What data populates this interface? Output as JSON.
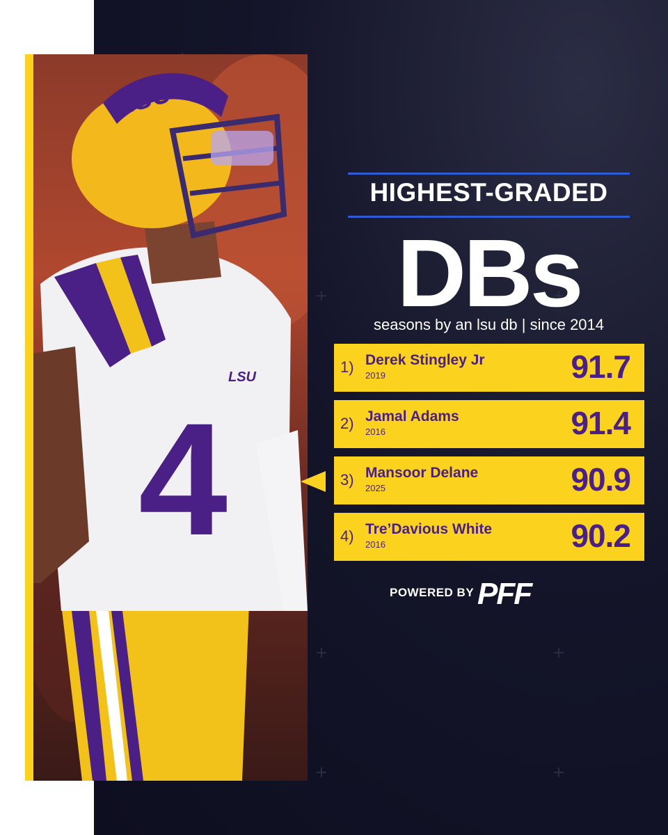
{
  "header": {
    "subtitle": "HIGHEST-GRADED",
    "title": "DBs",
    "caption": "seasons by an lsu db | since 2014"
  },
  "players": [
    {
      "rank": "1)",
      "name": "Derek Stingley Jr",
      "year": "2019",
      "grade": "91.7"
    },
    {
      "rank": "2)",
      "name": "Jamal Adams",
      "year": "2016",
      "grade": "91.4"
    },
    {
      "rank": "3)",
      "name": "Mansoor Delane",
      "year": "2025",
      "grade": "90.9"
    },
    {
      "rank": "4)",
      "name": "Tre’Davious White",
      "year": "2016",
      "grade": "90.2"
    }
  ],
  "highlighted_player_index": 2,
  "footer": {
    "powered_by": "POWERED BY",
    "brand": "PFF"
  },
  "photo": {
    "helmet_text": "LSU",
    "jersey_chest_text": "LSU",
    "jersey_number": "4"
  },
  "colors": {
    "background": "#14152a",
    "accent_gold": "#fbd21e",
    "accent_purple": "#4a1f86",
    "rule_blue": "#2f5bd6"
  }
}
